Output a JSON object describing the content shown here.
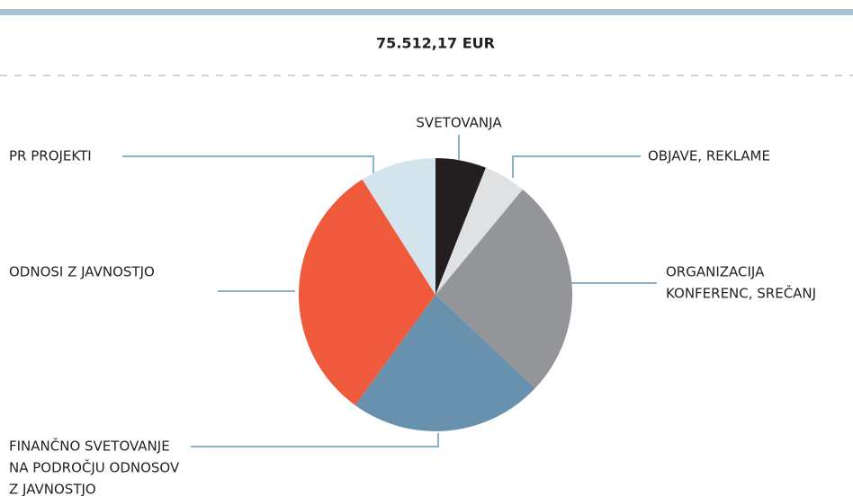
{
  "chart_data": {
    "type": "pie",
    "title": "75.512,17 EUR",
    "categories": [
      [
        "SVETOVANJA"
      ],
      [
        "OBJAVE, REKLAME"
      ],
      [
        "ORGANIZACIJA",
        "KONFERENC, SREČANJ"
      ],
      [
        "ODNOSI Z JAVNOSTJO"
      ],
      [
        "FINANČNO SVETOVANJE",
        "NA PODROČJU ODNOSOV",
        "Z JAVNOSTJO"
      ],
      [
        "PR PROJEKTI"
      ]
    ],
    "values": [
      6,
      5,
      26,
      23,
      31,
      9
    ],
    "colors": [
      "#231f20",
      "#e0e1e2",
      "#939598",
      "#6891ae",
      "#ef5a3c",
      "#d4e4ec"
    ]
  }
}
